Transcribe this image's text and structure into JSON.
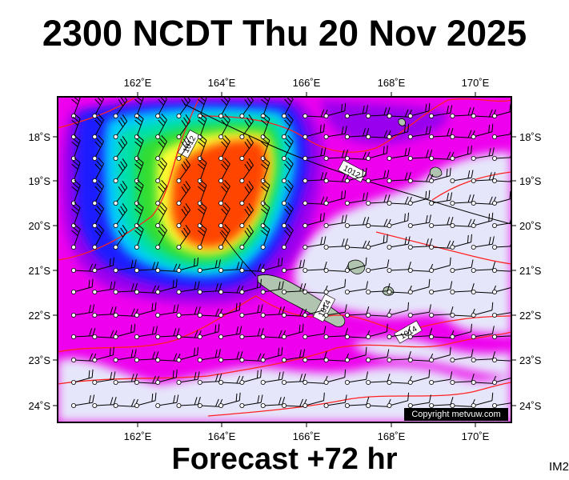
{
  "header": {
    "title": "2300 NCDT Thu 20 Nov 2025"
  },
  "footer": {
    "forecast": "Forecast +72 hr",
    "image_id": "IM2"
  },
  "map": {
    "copyright": "Copyright metvuw.com",
    "lon_ticks": [
      "162˚E",
      "164˚E",
      "166˚E",
      "168˚E",
      "170˚E"
    ],
    "lat_ticks": [
      "18˚S",
      "19˚S",
      "20˚S",
      "21˚S",
      "22˚S",
      "23˚S",
      "24˚S"
    ],
    "isobar_labels": [
      "1012",
      "1012",
      "1014",
      "1014"
    ],
    "colors": {
      "background": "#ee00ee",
      "calm": "#e6e6fa",
      "violet": "#9900ee",
      "blue": "#1a1aff",
      "cyan": "#00ccff",
      "teal": "#00e0aa",
      "green": "#33dd33",
      "yellow": "#ffff33",
      "orange": "#ff4400",
      "isobar": "#ff2222",
      "land": "#b0c4b0"
    }
  }
}
